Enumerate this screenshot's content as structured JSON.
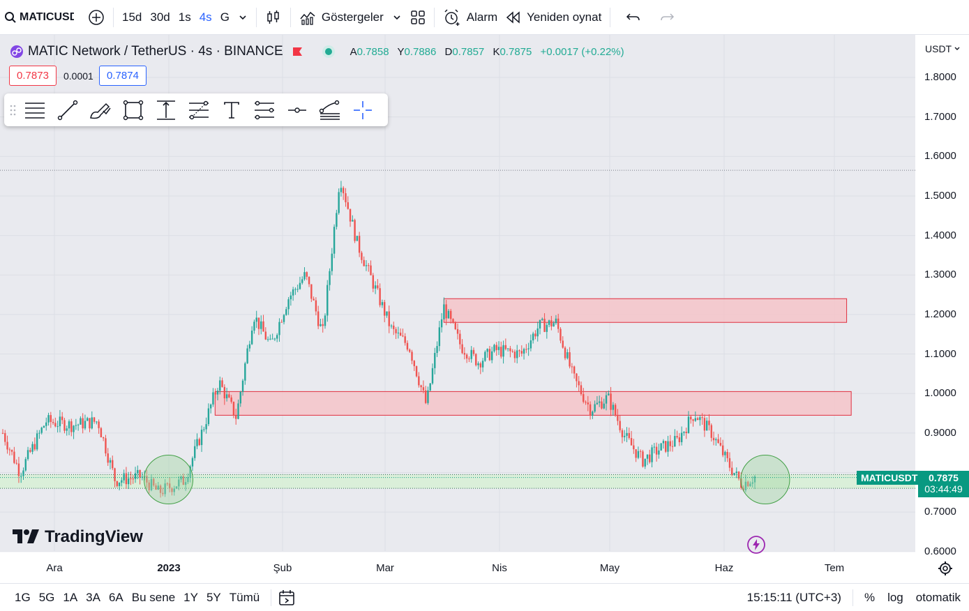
{
  "toolbar": {
    "symbol": "MATICUSDT",
    "intervals": [
      "15d",
      "30d",
      "1s",
      "4s",
      "G"
    ],
    "active_interval": "4s",
    "indicators_label": "Göstergeler",
    "alarm_label": "Alarm",
    "replay_label": "Yeniden oynat"
  },
  "legend": {
    "title": "MATIC Network / TetherUS · 4s · BINANCE",
    "ohlc": [
      {
        "k": "A",
        "v": "0.7858"
      },
      {
        "k": "Y",
        "v": "0.7886"
      },
      {
        "k": "D",
        "v": "0.7857"
      },
      {
        "k": "K",
        "v": "0.7875"
      }
    ],
    "change": "+0.0017 (+0.22%)",
    "bid": "0.7873",
    "spread": "0.0001",
    "ask": "0.7874"
  },
  "price_axis": {
    "currency": "USDT",
    "ticks": [
      "1.8000",
      "1.7000",
      "1.6000",
      "1.5000",
      "1.4000",
      "1.3000",
      "1.2000",
      "1.1000",
      "1.0000",
      "0.9000",
      "0.7000",
      "0.6000"
    ],
    "current_label_symbol": "MATICUSDT",
    "current_price": "0.7875",
    "countdown": "03:44:49"
  },
  "time_axis": [
    "Ara",
    "2023",
    "Şub",
    "Mar",
    "Nis",
    "May",
    "Haz",
    "Tem"
  ],
  "watermark": "TradingView",
  "bottom": {
    "ranges": [
      "1G",
      "5G",
      "1A",
      "3A",
      "6A",
      "Bu sene",
      "1Y",
      "5Y",
      "Tümü"
    ],
    "time": "15:15:11 (UTC+3)",
    "percent": "%",
    "log": "log",
    "auto": "otomatik"
  },
  "colors": {
    "up": "#26a69a",
    "down": "#ef5350",
    "zone_fill": "#f5c4c9",
    "zone_border": "#e02e3e",
    "support_fill": "#d8efd6",
    "accent": "#2962ff",
    "price_label": "#089981"
  },
  "chart_data": {
    "type": "candlestick",
    "symbol": "MATICUSDT",
    "ylim": [
      0.58,
      1.84
    ],
    "x_labels": [
      "Ara",
      "2023",
      "Şub",
      "Mar",
      "Nis",
      "May",
      "Haz",
      "Tem"
    ],
    "path_points": [
      [
        0.0,
        0.9
      ],
      [
        0.02,
        0.8
      ],
      [
        0.05,
        0.93
      ],
      [
        0.08,
        0.92
      ],
      [
        0.11,
        0.93
      ],
      [
        0.13,
        0.78
      ],
      [
        0.16,
        0.79
      ],
      [
        0.18,
        0.75
      ],
      [
        0.21,
        0.78
      ],
      [
        0.23,
        0.9
      ],
      [
        0.25,
        1.03
      ],
      [
        0.27,
        0.94
      ],
      [
        0.29,
        1.2
      ],
      [
        0.31,
        1.12
      ],
      [
        0.33,
        1.24
      ],
      [
        0.35,
        1.3
      ],
      [
        0.37,
        1.15
      ],
      [
        0.39,
        1.55
      ],
      [
        0.41,
        1.38
      ],
      [
        0.43,
        1.27
      ],
      [
        0.45,
        1.16
      ],
      [
        0.47,
        1.12
      ],
      [
        0.49,
        0.97
      ],
      [
        0.51,
        1.22
      ],
      [
        0.53,
        1.12
      ],
      [
        0.55,
        1.08
      ],
      [
        0.57,
        1.11
      ],
      [
        0.6,
        1.1
      ],
      [
        0.62,
        1.17
      ],
      [
        0.64,
        1.18
      ],
      [
        0.66,
        1.04
      ],
      [
        0.68,
        0.96
      ],
      [
        0.7,
        0.99
      ],
      [
        0.72,
        0.89
      ],
      [
        0.74,
        0.83
      ],
      [
        0.76,
        0.86
      ],
      [
        0.78,
        0.88
      ],
      [
        0.8,
        0.95
      ],
      [
        0.82,
        0.9
      ],
      [
        0.84,
        0.82
      ],
      [
        0.855,
        0.77
      ],
      [
        0.87,
        0.79
      ]
    ],
    "zones": [
      {
        "x0": 0.485,
        "x1": 0.925,
        "y0": 1.18,
        "y1": 1.24
      },
      {
        "x0": 0.235,
        "x1": 0.93,
        "y0": 0.945,
        "y1": 1.005
      }
    ],
    "support": {
      "y0": 0.76,
      "y1": 0.795
    },
    "reference_line": 1.565,
    "highlight_circles": [
      {
        "x": 0.178,
        "price": 0.77
      },
      {
        "x": 0.83,
        "price": 0.77
      }
    ]
  }
}
